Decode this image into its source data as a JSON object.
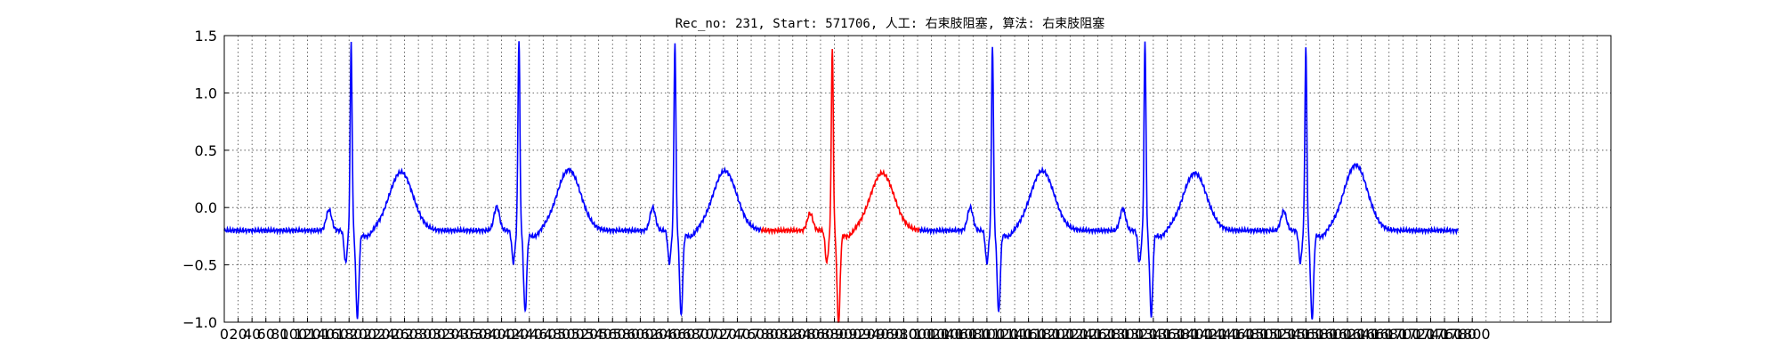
{
  "chart_data": {
    "type": "line",
    "title": "Rec_no: 231, Start: 571706, 人工: 右束肢阻塞, 算法: 右束肢阻塞",
    "xlabel": "",
    "ylabel": "",
    "xlim": [
      0,
      2000
    ],
    "ylim": [
      -1.0,
      1.5
    ],
    "grid": true,
    "grid_style": "dotted",
    "yticks": [
      1.5,
      1.0,
      0.5,
      0.0,
      -0.5,
      -1.0
    ],
    "ytick_labels": [
      "1.5",
      "1.0",
      "0.5",
      "0.0",
      "−0.5",
      "−1.0"
    ],
    "xtick_step": 20,
    "xticks_visible_max": 1800,
    "colors": {
      "normal": "#0000ff",
      "highlight": "#ff0000"
    },
    "beats": [
      {
        "r_peak": 183,
        "r_amp": 1.44,
        "s_amp": -0.95,
        "t_amp": 0.29,
        "p_amp": -0.04,
        "color": "normal"
      },
      {
        "r_peak": 425,
        "r_amp": 1.46,
        "s_amp": -0.9,
        "t_amp": 0.31,
        "p_amp": -0.01,
        "color": "normal"
      },
      {
        "r_peak": 650,
        "r_amp": 1.45,
        "s_amp": -0.94,
        "t_amp": 0.3,
        "p_amp": -0.02,
        "color": "normal"
      },
      {
        "r_peak": 877,
        "r_amp": 1.38,
        "s_amp": -1.0,
        "t_amp": 0.28,
        "p_amp": -0.07,
        "color": "highlight"
      },
      {
        "r_peak": 1108,
        "r_amp": 1.42,
        "s_amp": -0.91,
        "t_amp": 0.3,
        "p_amp": -0.02,
        "color": "normal"
      },
      {
        "r_peak": 1328,
        "r_amp": 1.43,
        "s_amp": -0.93,
        "t_amp": 0.28,
        "p_amp": -0.03,
        "color": "normal"
      },
      {
        "r_peak": 1560,
        "r_amp": 1.4,
        "s_amp": -0.97,
        "t_amp": 0.35,
        "p_amp": -0.05,
        "color": "normal"
      }
    ],
    "signal_end": 1780,
    "baseline": -0.2
  }
}
